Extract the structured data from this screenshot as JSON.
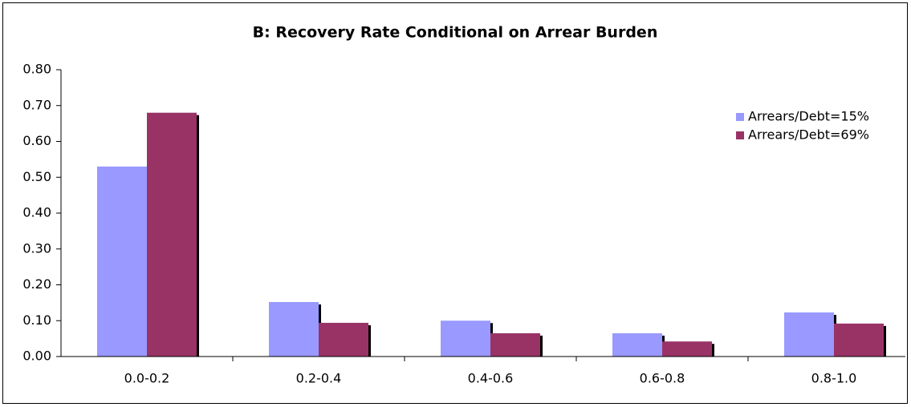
{
  "chart_data": {
    "type": "bar",
    "title": "B: Recovery Rate Conditional on Arrear Burden",
    "categories": [
      "0.0-0.2",
      "0.2-0.4",
      "0.4-0.6",
      "0.6-0.8",
      "0.8-1.0"
    ],
    "series": [
      {
        "name": "Arrears/Debt=15%",
        "color": "#9999ff",
        "values": [
          0.53,
          0.152,
          0.1,
          0.065,
          0.123
        ]
      },
      {
        "name": "Arrears/Debt=69%",
        "color": "#993366",
        "values": [
          0.68,
          0.094,
          0.065,
          0.042,
          0.092
        ]
      }
    ],
    "ylim": [
      0,
      0.8
    ],
    "yticks": [
      {
        "value": 0,
        "label": "0.00"
      },
      {
        "value": 0.1,
        "label": "0.10"
      },
      {
        "value": 0.2,
        "label": "0.20"
      },
      {
        "value": 0.3,
        "label": "0.30"
      },
      {
        "value": 0.4,
        "label": "0.40"
      },
      {
        "value": 0.5,
        "label": "0.50"
      },
      {
        "value": 0.6,
        "label": "0.60"
      },
      {
        "value": 0.7,
        "label": "0.70"
      },
      {
        "value": 0.8,
        "label": "0.80"
      }
    ],
    "grid": false,
    "legend": "upper right"
  }
}
